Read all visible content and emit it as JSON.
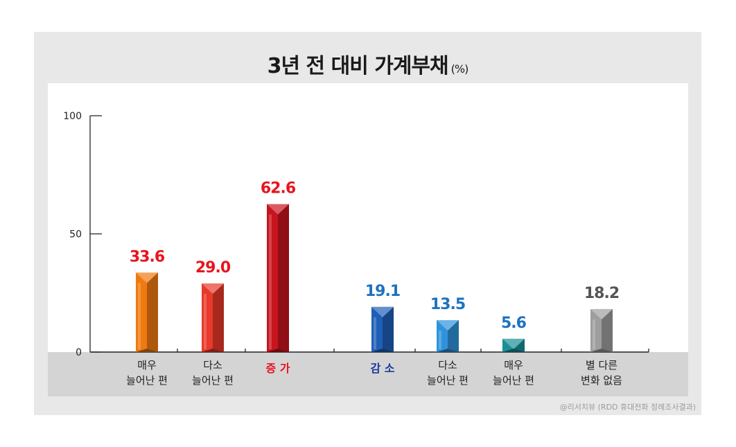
{
  "title": "3년 전 대비 가계부채",
  "unit": "(%)",
  "source": "@리서치뷰 (RDD 휴대전화 정례조사결과)",
  "chart_data": {
    "type": "bar",
    "title": "3년 전 대비 가계부채",
    "ylim": [
      0,
      100
    ],
    "yticks": [
      0,
      50,
      100
    ],
    "grid": false,
    "categories": [
      "매우\n늘어난 편",
      "다소\n늘어난 편",
      "증 가",
      "감 소",
      "다소\n늘어난 편",
      "매우\n늘어난 편",
      "별 다른\n변화 없음"
    ],
    "values": [
      33.6,
      29.0,
      62.6,
      19.1,
      13.5,
      5.6,
      18.2
    ],
    "value_labels": [
      "33.6",
      "29.0",
      "62.6",
      "19.1",
      "13.5",
      "5.6",
      "18.2"
    ],
    "colors": [
      "#f07a10",
      "#e8392a",
      "#c8141e",
      "#1f5fb8",
      "#2f93dc",
      "#1a8f96",
      "#9e9e9e"
    ],
    "label_colors": [
      "#e8141e",
      "#e8141e",
      "#e8141e",
      "#1d72c0",
      "#1d72c0",
      "#1d72c0",
      "#555555"
    ],
    "category_label_colors": [
      "#222222",
      "#222222",
      "#e8141e",
      "#1a3a9a",
      "#222222",
      "#222222",
      "#222222"
    ],
    "category_label_bold": [
      false,
      false,
      true,
      true,
      false,
      false,
      false
    ]
  }
}
